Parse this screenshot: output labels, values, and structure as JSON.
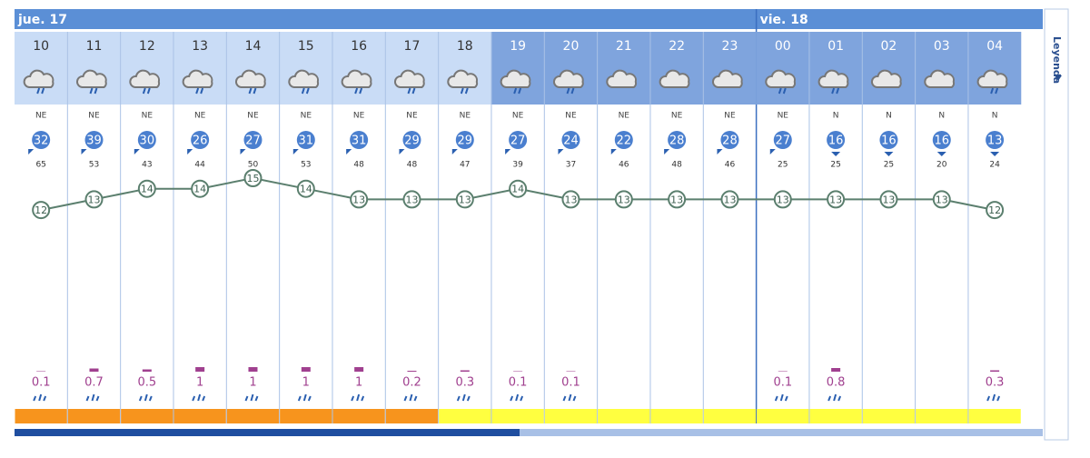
{
  "legend_label": "Leyenda",
  "days": [
    {
      "label": "jue. 17",
      "hours": [
        {
          "hour": "10",
          "night": false,
          "icon": "rain",
          "wind_dir": "NE",
          "wind": 32,
          "gust": 65,
          "temp": 12,
          "precip": 0.1,
          "warning": "#f7941d"
        },
        {
          "hour": "11",
          "night": false,
          "icon": "rain",
          "wind_dir": "NE",
          "wind": 39,
          "gust": 53,
          "temp": 13,
          "precip": 0.7,
          "warning": "#f7941d"
        },
        {
          "hour": "12",
          "night": false,
          "icon": "rain",
          "wind_dir": "NE",
          "wind": 30,
          "gust": 43,
          "temp": 14,
          "precip": 0.5,
          "warning": "#f7941d"
        },
        {
          "hour": "13",
          "night": false,
          "icon": "rain",
          "wind_dir": "NE",
          "wind": 26,
          "gust": 44,
          "temp": 14,
          "precip": 1,
          "warning": "#f7941d"
        },
        {
          "hour": "14",
          "night": false,
          "icon": "rain",
          "wind_dir": "NE",
          "wind": 27,
          "gust": 50,
          "temp": 15,
          "precip": 1,
          "warning": "#f7941d"
        },
        {
          "hour": "15",
          "night": false,
          "icon": "rain",
          "wind_dir": "NE",
          "wind": 31,
          "gust": 53,
          "temp": 14,
          "precip": 1,
          "warning": "#f7941d"
        },
        {
          "hour": "16",
          "night": false,
          "icon": "rain",
          "wind_dir": "NE",
          "wind": 31,
          "gust": 48,
          "temp": 13,
          "precip": 1,
          "warning": "#f7941d"
        },
        {
          "hour": "17",
          "night": false,
          "icon": "rain",
          "wind_dir": "NE",
          "wind": 29,
          "gust": 48,
          "temp": 13,
          "precip": 0.2,
          "warning": "#f7941d"
        },
        {
          "hour": "18",
          "night": false,
          "icon": "rain",
          "wind_dir": "NE",
          "wind": 29,
          "gust": 47,
          "temp": 13,
          "precip": 0.3,
          "warning": "#ffff40"
        },
        {
          "hour": "19",
          "night": true,
          "icon": "rain",
          "wind_dir": "NE",
          "wind": 27,
          "gust": 39,
          "temp": 14,
          "precip": 0.1,
          "warning": "#ffff40"
        },
        {
          "hour": "20",
          "night": true,
          "icon": "rain",
          "wind_dir": "NE",
          "wind": 24,
          "gust": 37,
          "temp": 13,
          "precip": 0.1,
          "warning": "#ffff40"
        },
        {
          "hour": "21",
          "night": true,
          "icon": "cloud",
          "wind_dir": "NE",
          "wind": 22,
          "gust": 46,
          "temp": 13,
          "precip": null,
          "warning": "#ffff40"
        },
        {
          "hour": "22",
          "night": true,
          "icon": "cloud",
          "wind_dir": "NE",
          "wind": 28,
          "gust": 48,
          "temp": 13,
          "precip": null,
          "warning": "#ffff40"
        },
        {
          "hour": "23",
          "night": true,
          "icon": "cloud",
          "wind_dir": "NE",
          "wind": 28,
          "gust": 46,
          "temp": 13,
          "precip": null,
          "warning": "#ffff40"
        }
      ]
    },
    {
      "label": "vie. 18",
      "hours": [
        {
          "hour": "00",
          "night": true,
          "icon": "rain",
          "wind_dir": "NE",
          "wind": 27,
          "gust": 25,
          "temp": 13,
          "precip": 0.1,
          "warning": "#ffff40"
        },
        {
          "hour": "01",
          "night": true,
          "icon": "rain",
          "wind_dir": "N",
          "wind": 16,
          "gust": 25,
          "temp": 13,
          "precip": 0.8,
          "warning": "#ffff40"
        },
        {
          "hour": "02",
          "night": true,
          "icon": "cloud",
          "wind_dir": "N",
          "wind": 16,
          "gust": 25,
          "temp": 13,
          "precip": null,
          "warning": "#ffff40"
        },
        {
          "hour": "03",
          "night": true,
          "icon": "cloud",
          "wind_dir": "N",
          "wind": 16,
          "gust": 20,
          "temp": 13,
          "precip": null,
          "warning": "#ffff40"
        },
        {
          "hour": "04",
          "night": true,
          "icon": "rain",
          "wind_dir": "N",
          "wind": 13,
          "gust": 24,
          "temp": 12,
          "precip": 0.3,
          "warning": "#ffff40"
        }
      ]
    }
  ]
}
